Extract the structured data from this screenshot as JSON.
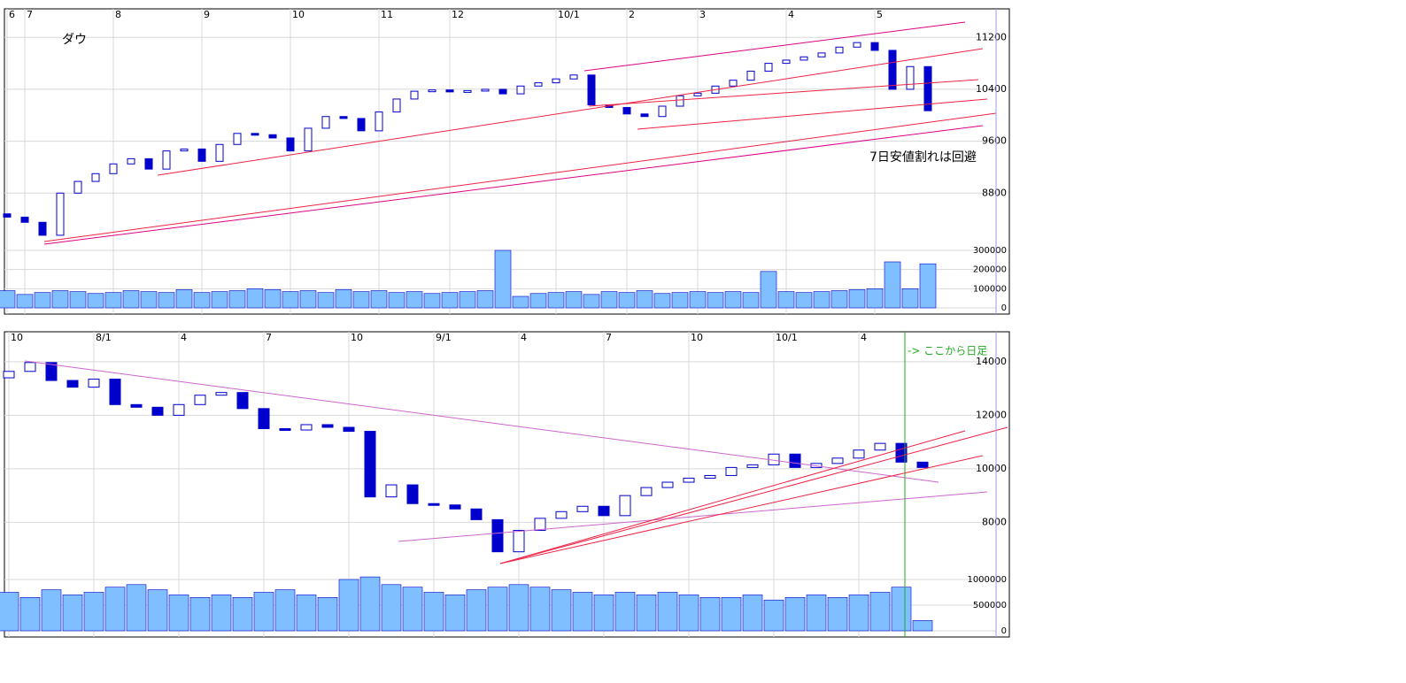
{
  "chart_data": [
    {
      "type": "candlestick",
      "title": "ダウ",
      "annotation": "7日安値割れは回避",
      "grid": true,
      "up_color": "#ffffff",
      "down_color": "#0000cc",
      "volume_color": "#7fbfff",
      "categories": [
        "6",
        "7",
        null,
        null,
        null,
        null,
        "8",
        null,
        null,
        null,
        null,
        "9",
        null,
        null,
        null,
        null,
        "10",
        null,
        null,
        null,
        null,
        "11",
        null,
        null,
        null,
        "12",
        null,
        null,
        null,
        null,
        null,
        "10/1",
        null,
        null,
        null,
        "2",
        null,
        null,
        null,
        "3",
        null,
        null,
        null,
        null,
        "4",
        null,
        null,
        null,
        null,
        "5",
        null,
        null,
        null
      ],
      "open": [
        8480,
        8430,
        8350,
        8150,
        8800,
        8980,
        9100,
        9250,
        9330,
        9170,
        9450,
        9480,
        9290,
        9550,
        9720,
        9700,
        9650,
        9450,
        9800,
        9980,
        9950,
        9760,
        10050,
        10250,
        10370,
        10390,
        10360,
        10380,
        10400,
        10330,
        10450,
        10500,
        10560,
        10620,
        10160,
        10120,
        10020,
        9980,
        10140,
        10300,
        10340,
        10450,
        10540,
        10680,
        10800,
        10850,
        10900,
        10960,
        11050,
        11120,
        11000,
        10400,
        10750
      ],
      "close": [
        8430,
        8350,
        8150,
        8800,
        8980,
        9100,
        9250,
        9330,
        9170,
        9450,
        9480,
        9290,
        9550,
        9720,
        9700,
        9650,
        9450,
        9800,
        9980,
        9950,
        9760,
        10050,
        10250,
        10370,
        10390,
        10360,
        10380,
        10400,
        10330,
        10450,
        10500,
        10560,
        10620,
        10160,
        10120,
        10020,
        9980,
        10140,
        10300,
        10340,
        10450,
        10540,
        10680,
        10800,
        10850,
        10900,
        10960,
        11050,
        11120,
        11000,
        10400,
        10750,
        10070
      ],
      "volume": [
        90000,
        70000,
        80000,
        90000,
        85000,
        75000,
        80000,
        90000,
        85000,
        80000,
        95000,
        80000,
        85000,
        90000,
        100000,
        95000,
        85000,
        90000,
        80000,
        95000,
        85000,
        90000,
        80000,
        85000,
        75000,
        80000,
        85000,
        90000,
        300000,
        60000,
        75000,
        80000,
        85000,
        70000,
        85000,
        80000,
        90000,
        75000,
        80000,
        85000,
        80000,
        85000,
        80000,
        190000,
        85000,
        80000,
        85000,
        90000,
        95000,
        100000,
        240000,
        100000,
        230000
      ],
      "ylim": [
        7890,
        11640
      ],
      "yticks": [
        8800,
        9600,
        10400,
        11200
      ],
      "volume_ylim": [
        0,
        300000
      ],
      "volume_yticks": [
        0,
        100000,
        200000,
        300000
      ]
    },
    {
      "type": "candlestick",
      "annotation": "-> ここから日足",
      "grid": true,
      "up_color": "#ffffff",
      "down_color": "#0000cc",
      "volume_color": "#7fbfff",
      "categories": [
        "10",
        null,
        null,
        null,
        "8/1",
        null,
        null,
        null,
        "4",
        null,
        null,
        null,
        "7",
        null,
        null,
        null,
        "10",
        null,
        null,
        null,
        "9/1",
        null,
        null,
        null,
        "4",
        null,
        null,
        null,
        "7",
        null,
        null,
        null,
        "10",
        null,
        null,
        null,
        "10/1",
        null,
        null,
        null,
        "4",
        null,
        null,
        null
      ],
      "open": [
        13400,
        13640,
        13970,
        13300,
        13050,
        13350,
        12400,
        12300,
        12000,
        12400,
        12750,
        12850,
        12250,
        11500,
        11450,
        11650,
        11550,
        11400,
        8950,
        9400,
        8700,
        8650,
        8500,
        8100,
        6900,
        7700,
        8150,
        8400,
        8600,
        8250,
        9000,
        9300,
        9500,
        9650,
        9750,
        10050,
        10150,
        10550,
        10050,
        10200,
        10400,
        10700,
        10950,
        10250
      ],
      "close": [
        13640,
        13970,
        13300,
        13050,
        13350,
        12400,
        12300,
        12000,
        12400,
        12750,
        12850,
        12250,
        11500,
        11450,
        11650,
        11550,
        11400,
        8950,
        9400,
        8700,
        8650,
        8500,
        8100,
        6900,
        7700,
        8150,
        8400,
        8600,
        8250,
        9000,
        9300,
        9500,
        9650,
        9750,
        10050,
        10150,
        10550,
        10050,
        10200,
        10400,
        10700,
        10950,
        10250,
        10050
      ],
      "volume": [
        750000,
        650000,
        800000,
        700000,
        750000,
        850000,
        900000,
        800000,
        700000,
        650000,
        700000,
        650000,
        750000,
        800000,
        700000,
        650000,
        1000000,
        1050000,
        900000,
        850000,
        750000,
        700000,
        800000,
        850000,
        900000,
        850000,
        800000,
        750000,
        700000,
        750000,
        700000,
        750000,
        700000,
        650000,
        650000,
        700000,
        600000,
        650000,
        700000,
        650000,
        700000,
        750000,
        850000,
        200000
      ],
      "ylim": [
        6030,
        15120
      ],
      "yticks": [
        8000,
        10000,
        12000,
        14000
      ],
      "volume_ylim": [
        0,
        1000000
      ],
      "volume_yticks": [
        0,
        500000,
        1000000
      ]
    }
  ]
}
